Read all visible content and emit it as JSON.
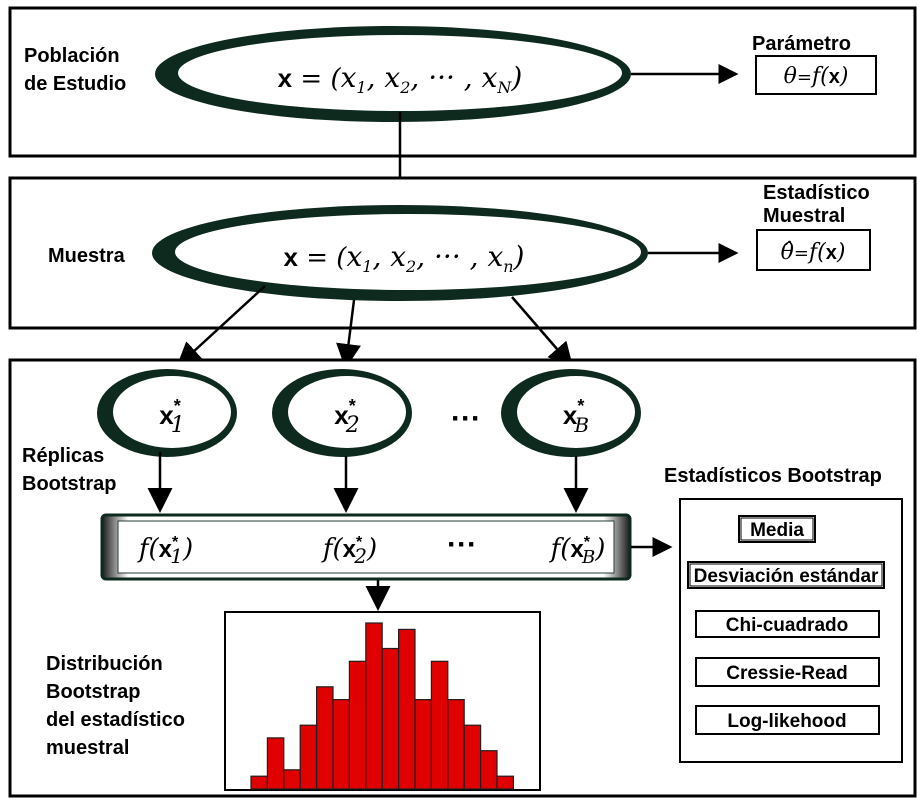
{
  "labels": {
    "poblacion_line1": "Población",
    "poblacion_line2": "de Estudio",
    "muestra": "Muestra",
    "replicas_line1": "Réplicas",
    "replicas_line2": "Bootstrap",
    "distribucion_line1": "Distribución",
    "distribucion_line2": "Bootstrap",
    "distribucion_line3": "del estadístico",
    "distribucion_line4": "muestral",
    "parametro": "Parámetro",
    "estadistico_line1": "Estadístico",
    "estadistico_line2": "Muestral",
    "estadisticos_bootstrap": "Estadísticos Bootstrap",
    "dots": "···"
  },
  "formulas": {
    "population_vector": "x = (x₁, x₂, ··· , x_N)",
    "sample_vector": "x = (x₁, x₂, ··· , xₙ)",
    "theta": "θ = f(x)",
    "theta_hat": "θ̂ = f(x)",
    "replica_1": "x*₁",
    "replica_2": "x*₂",
    "replica_B": "x*_B",
    "f_replica_1": "f(x*₁)",
    "f_replica_2": "f(x*₂)",
    "f_replica_B": "f(x*_B)"
  },
  "bootstrap_stats": [
    "Media",
    "Desviación estándar",
    "Chi-cuadrado",
    "Cressie-Read",
    "Log-likehood"
  ],
  "histogram": {
    "values": [
      1,
      4,
      1.5,
      5,
      8,
      7,
      10,
      13,
      11,
      12.5,
      7,
      10,
      7,
      5,
      3,
      1
    ],
    "max": 13,
    "bar_color": "#e00000"
  }
}
